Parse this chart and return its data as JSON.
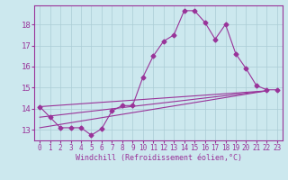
{
  "xlabel": "Windchill (Refroidissement éolien,°C)",
  "xlim": [
    -0.5,
    23.5
  ],
  "ylim": [
    12.5,
    18.9
  ],
  "yticks": [
    13,
    14,
    15,
    16,
    17,
    18
  ],
  "xticks": [
    0,
    1,
    2,
    3,
    4,
    5,
    6,
    7,
    8,
    9,
    10,
    11,
    12,
    13,
    14,
    15,
    16,
    17,
    18,
    19,
    20,
    21,
    22,
    23
  ],
  "bg_color": "#cce8ee",
  "grid_color": "#aaccd5",
  "line_color": "#993399",
  "line1_x": [
    0,
    1,
    2,
    3,
    4,
    5,
    6,
    7,
    8,
    9,
    10,
    11,
    12,
    13,
    14,
    15,
    16,
    17,
    18,
    19,
    20,
    21,
    22,
    23
  ],
  "line1_y": [
    14.1,
    13.6,
    13.1,
    13.1,
    13.1,
    12.75,
    13.05,
    13.9,
    14.15,
    14.15,
    15.5,
    16.5,
    17.2,
    17.5,
    18.65,
    18.65,
    18.1,
    17.3,
    18.0,
    16.6,
    15.9,
    15.1,
    14.9,
    14.9
  ],
  "line2_x": [
    0,
    22
  ],
  "line2_y": [
    13.1,
    14.85
  ],
  "line3_x": [
    0,
    22
  ],
  "line3_y": [
    13.6,
    14.85
  ],
  "line4_x": [
    0,
    22
  ],
  "line4_y": [
    14.1,
    14.85
  ]
}
